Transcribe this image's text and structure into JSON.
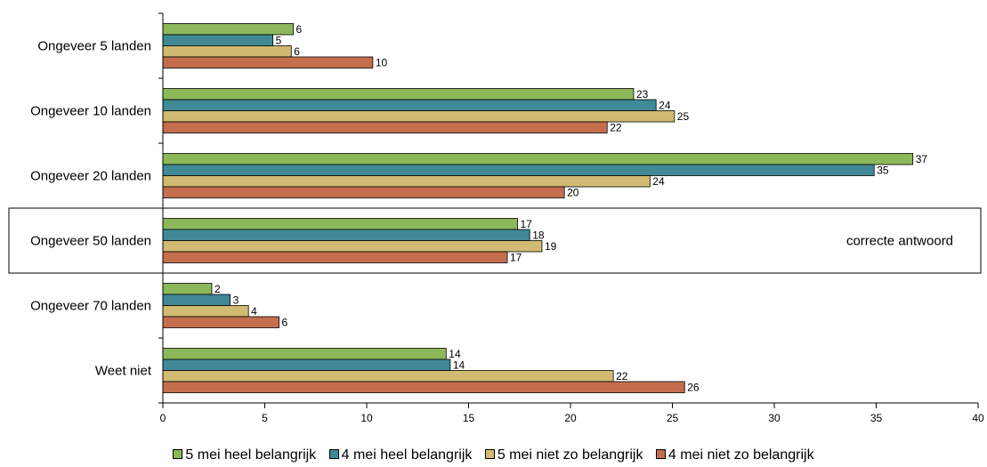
{
  "chart_data": {
    "type": "bar",
    "orientation": "horizontal",
    "categories": [
      "Ongeveer 5 landen",
      "Ongeveer 10 landen",
      "Ongeveer 20 landen",
      "Ongeveer 50 landen",
      "Ongeveer 70 landen",
      "Weet niet"
    ],
    "series": [
      {
        "name": "5 mei heel belangrijk",
        "color": "#8db85a",
        "values": [
          6,
          23,
          37,
          17,
          2,
          14
        ],
        "value_positions": [
          6.4,
          23.1,
          36.8,
          17.4,
          2.4,
          13.9
        ]
      },
      {
        "name": "4 mei heel belangrijk",
        "color": "#3f8a96",
        "values": [
          5,
          24,
          35,
          18,
          3,
          14
        ],
        "value_positions": [
          5.4,
          24.2,
          34.9,
          18.0,
          3.3,
          14.1
        ]
      },
      {
        "name": "5 mei niet zo belangrijk",
        "color": "#d1bb72",
        "values": [
          6,
          25,
          24,
          19,
          4,
          22
        ],
        "value_positions": [
          6.3,
          25.1,
          23.9,
          18.6,
          4.2,
          22.1
        ]
      },
      {
        "name": "4 mei niet zo belangrijk",
        "color": "#c46e4e",
        "values": [
          10,
          22,
          20,
          17,
          6,
          26
        ],
        "value_positions": [
          10.3,
          21.8,
          19.7,
          16.9,
          5.7,
          25.6
        ]
      }
    ],
    "xlim": [
      0,
      40
    ],
    "xticks": [
      0,
      5,
      10,
      15,
      20,
      25,
      30,
      35,
      40
    ],
    "grid": false,
    "legend": "bottom",
    "highlight": {
      "category": "Ongeveer 50 landen",
      "annotation": "correcte antwoord"
    }
  }
}
